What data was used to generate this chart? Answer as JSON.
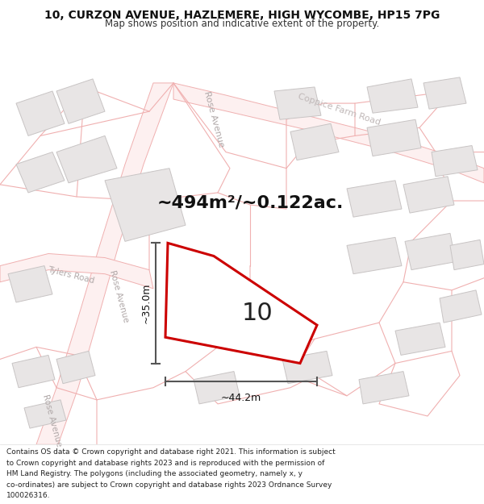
{
  "title_line1": "10, CURZON AVENUE, HAZLEMERE, HIGH WYCOMBE, HP15 7PG",
  "title_line2": "Map shows position and indicative extent of the property.",
  "area_text": "~494m²/~0.122ac.",
  "property_number": "10",
  "dim_width": "~44.2m",
  "dim_height": "~35.0m",
  "footer_lines": [
    "Contains OS data © Crown copyright and database right 2021. This information is subject",
    "to Crown copyright and database rights 2023 and is reproduced with the permission of",
    "HM Land Registry. The polygons (including the associated geometry, namely x, y",
    "co-ordinates) are subject to Crown copyright and database rights 2023 Ordnance Survey",
    "100026316."
  ],
  "bg_color": "#f7f4f4",
  "building_fill": "#e8e5e5",
  "building_edge": "#c8c4c4",
  "property_fill": "#ffffff",
  "property_edge": "#cc0000",
  "dim_line_color": "#555555",
  "road_line_color": "#f0b0b0",
  "road_fill_color": "#f9e8e8",
  "title_fontsize": 10,
  "subtitle_fontsize": 8.5,
  "area_fontsize": 16,
  "number_fontsize": 22,
  "dim_fontsize": 9,
  "road_label_fontsize": 7.5,
  "road_label_color": "#b0a8a8",
  "footer_fontsize": 6.5
}
